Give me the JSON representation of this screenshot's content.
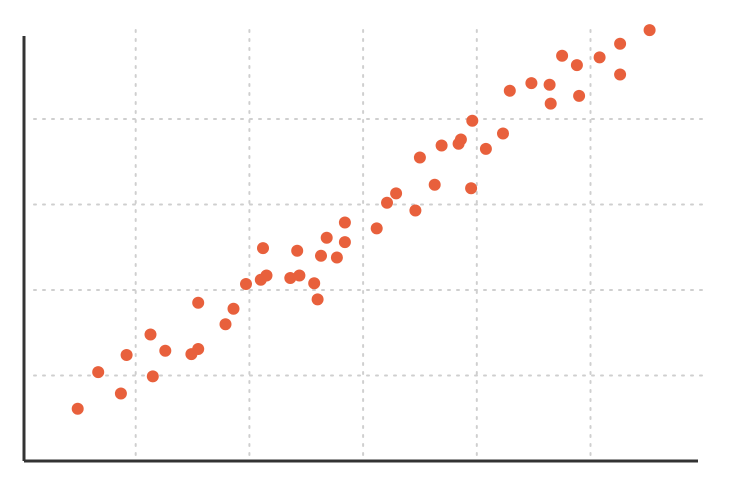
{
  "colors": {
    "point": "#e8603c",
    "grid": "#cfcfcf",
    "axis": "#333333",
    "background": "#ffffff"
  },
  "chart_data": {
    "type": "scatter",
    "title": "",
    "xlabel": "",
    "ylabel": "",
    "grid": true,
    "legend": "none",
    "xlim": [
      0,
      6
    ],
    "ylim": [
      0,
      5
    ],
    "x_gridlines": [
      1,
      2,
      3,
      4,
      5
    ],
    "y_gridlines": [
      1,
      2,
      3,
      4
    ],
    "series": [
      {
        "x": [
          0.49,
          0.67,
          0.87,
          0.92,
          1.13,
          1.15,
          1.26,
          1.49,
          1.55,
          1.55,
          1.79,
          1.86,
          1.97,
          2.1,
          2.12,
          2.15,
          2.36,
          2.42,
          2.44,
          2.57,
          2.6,
          2.63,
          2.68,
          2.77,
          2.84,
          2.84,
          3.12,
          3.21,
          3.29,
          3.46,
          3.5,
          3.63,
          3.69,
          3.84,
          3.86,
          3.95,
          3.96,
          4.08,
          4.23,
          4.29,
          4.48,
          4.64,
          4.65,
          4.75,
          4.88,
          4.9,
          5.08,
          5.26,
          5.26,
          5.52
        ],
        "y": [
          0.61,
          1.04,
          0.79,
          1.24,
          1.48,
          0.99,
          1.29,
          1.25,
          1.31,
          1.85,
          1.6,
          1.78,
          2.07,
          2.12,
          2.49,
          2.17,
          2.14,
          2.46,
          2.17,
          2.08,
          1.89,
          2.4,
          2.61,
          2.38,
          2.79,
          2.56,
          2.72,
          3.02,
          3.13,
          2.93,
          3.55,
          3.23,
          3.69,
          3.71,
          3.76,
          3.19,
          3.98,
          3.65,
          3.83,
          4.33,
          4.42,
          4.4,
          4.18,
          4.74,
          4.63,
          4.27,
          4.72,
          4.52,
          4.88,
          5.04
        ]
      }
    ]
  }
}
